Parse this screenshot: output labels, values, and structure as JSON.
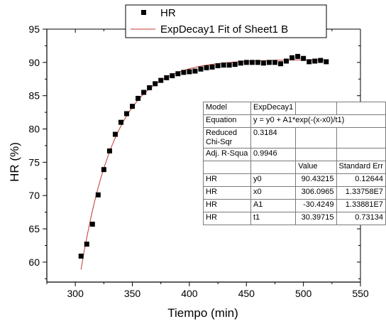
{
  "chart_data": {
    "type": "scatter",
    "xlabel": "Tiempo (min)",
    "ylabel": "HR (%)",
    "xlim": [
      275,
      550
    ],
    "ylim": [
      57,
      95
    ],
    "xticks": [
      300,
      350,
      400,
      450,
      500,
      550
    ],
    "yticks": [
      60,
      65,
      70,
      75,
      80,
      85,
      90,
      95
    ],
    "grid": false,
    "legend_position": "top-center",
    "series": [
      {
        "name": "HR",
        "kind": "scatter",
        "marker": "square",
        "color": "#000000",
        "x": [
          305,
          310,
          315,
          320,
          325,
          330,
          335,
          340,
          345,
          350,
          355,
          360,
          365,
          370,
          375,
          380,
          385,
          390,
          395,
          400,
          405,
          410,
          415,
          420,
          425,
          430,
          435,
          440,
          445,
          450,
          455,
          460,
          465,
          470,
          475,
          480,
          485,
          490,
          495,
          500,
          505,
          510,
          515,
          520
        ],
        "y": [
          60.9,
          62.7,
          65.7,
          70.1,
          73.9,
          76.7,
          79.2,
          81.0,
          82.3,
          83.4,
          84.6,
          85.5,
          86.2,
          86.8,
          87.3,
          87.7,
          88.0,
          88.3,
          88.5,
          88.6,
          88.7,
          89.0,
          89.2,
          89.3,
          89.5,
          89.6,
          89.6,
          89.7,
          89.9,
          90.0,
          90.0,
          90.0,
          89.9,
          90.0,
          90.0,
          89.8,
          90.2,
          90.7,
          90.9,
          90.6,
          90.1,
          90.2,
          90.3,
          90.1
        ]
      },
      {
        "name": "ExpDecay1 Fit of Sheet1 B",
        "kind": "line",
        "color": "#c0392b",
        "model": {
          "y0": 90.43215,
          "x0": 306.0965,
          "A1": -30.4249,
          "t1": 30.39715
        },
        "x_range": [
          305,
          520
        ]
      }
    ]
  },
  "fit_table": {
    "rows": [
      [
        "Model",
        "ExpDecay1",
        "",
        ""
      ],
      [
        "Equation",
        "y = y0 + A1*exp(-(x-x0)/t1)",
        "",
        ""
      ],
      [
        "Reduced Chi-Sqr",
        "0.3184",
        "",
        ""
      ],
      [
        "Adj. R-Squa",
        "0.9946",
        "",
        ""
      ],
      [
        "",
        "",
        "Value",
        "Standard Err"
      ],
      [
        "HR",
        "y0",
        "90.43215",
        "0.12644"
      ],
      [
        "HR",
        "x0",
        "306.0965",
        "1.33758E7"
      ],
      [
        "HR",
        "A1",
        "-30.4249",
        "1.33881E7"
      ],
      [
        "HR",
        "t1",
        "30.39715",
        "0.73134"
      ]
    ]
  }
}
